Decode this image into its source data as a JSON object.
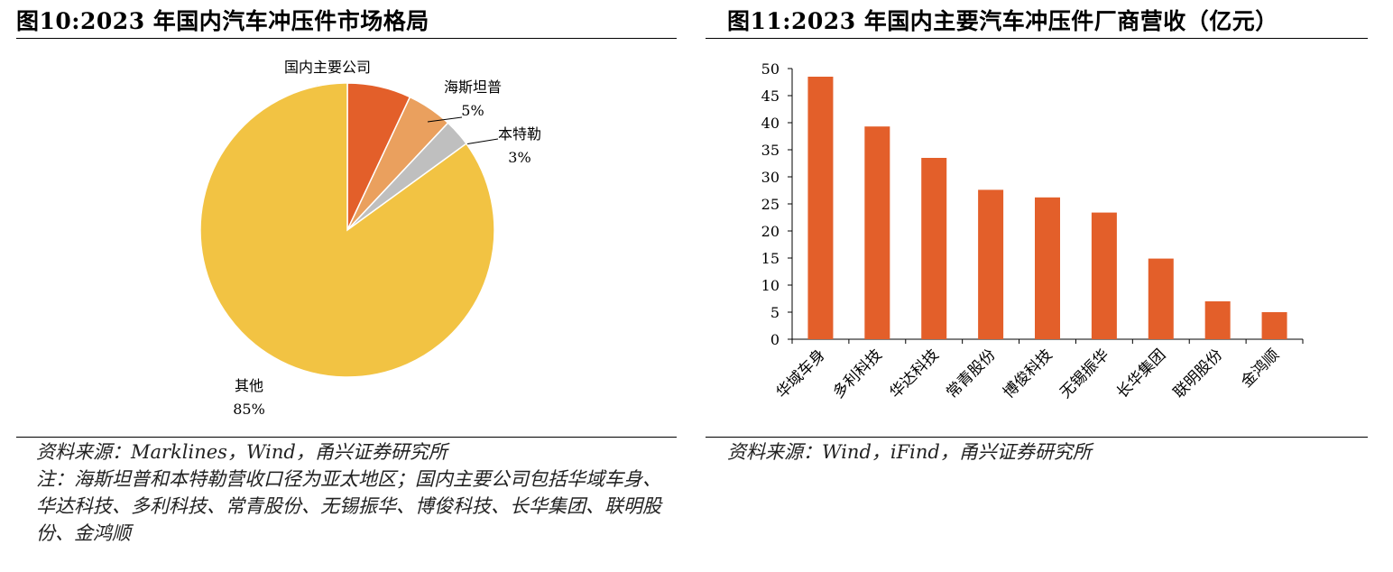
{
  "left": {
    "title": "图10:2023 年国内汽车冲压件市场格局",
    "source": "资料来源：Marklines，Wind，甬兴证券研究所",
    "note": "注：海斯坦普和本特勒营收口径为亚太地区；国内主要公司包括华域车身、华达科技、多利科技、常青股份、无锡振华、博俊科技、长华集团、联明股份、金鸿顺"
  },
  "right": {
    "title": "图11:2023 年国内主要汽车冲压件厂商营收（亿元）",
    "source": "资料来源：Wind，iFind，甬兴证券研究所"
  },
  "colors": {
    "pie": [
      "#e35f2a",
      "#eaa05e",
      "#bfbfbf",
      "#f2c343"
    ],
    "bar": "#e35f2a"
  },
  "chart_data": [
    {
      "type": "pie",
      "title": "图10:2023 年国内汽车冲压件市场格局",
      "slices": [
        {
          "label": "国内主要公司",
          "value": 7,
          "pct_label": "7%"
        },
        {
          "label": "海斯坦普",
          "value": 5,
          "pct_label": "5%"
        },
        {
          "label": "本特勒",
          "value": 3,
          "pct_label": "3%"
        },
        {
          "label": "其他",
          "value": 85,
          "pct_label": "85%"
        }
      ]
    },
    {
      "type": "bar",
      "title": "图11:2023 年国内主要汽车冲压件厂商营收（亿元）",
      "categories": [
        "华域车身",
        "多利科技",
        "华达科技",
        "常青股份",
        "博俊科技",
        "无锡振华",
        "长华集团",
        "联明股份",
        "金鸿顺"
      ],
      "values": [
        48.5,
        39.3,
        33.5,
        27.6,
        26.2,
        23.4,
        14.9,
        7.0,
        5.0
      ],
      "ylim": [
        0,
        50
      ],
      "yticks": [
        0,
        5,
        10,
        15,
        20,
        25,
        30,
        35,
        40,
        45,
        50
      ],
      "ytick_labels": [
        "0",
        "5",
        "10",
        "15",
        "20",
        "25",
        "30",
        "35",
        "40",
        "45",
        "50"
      ]
    }
  ]
}
